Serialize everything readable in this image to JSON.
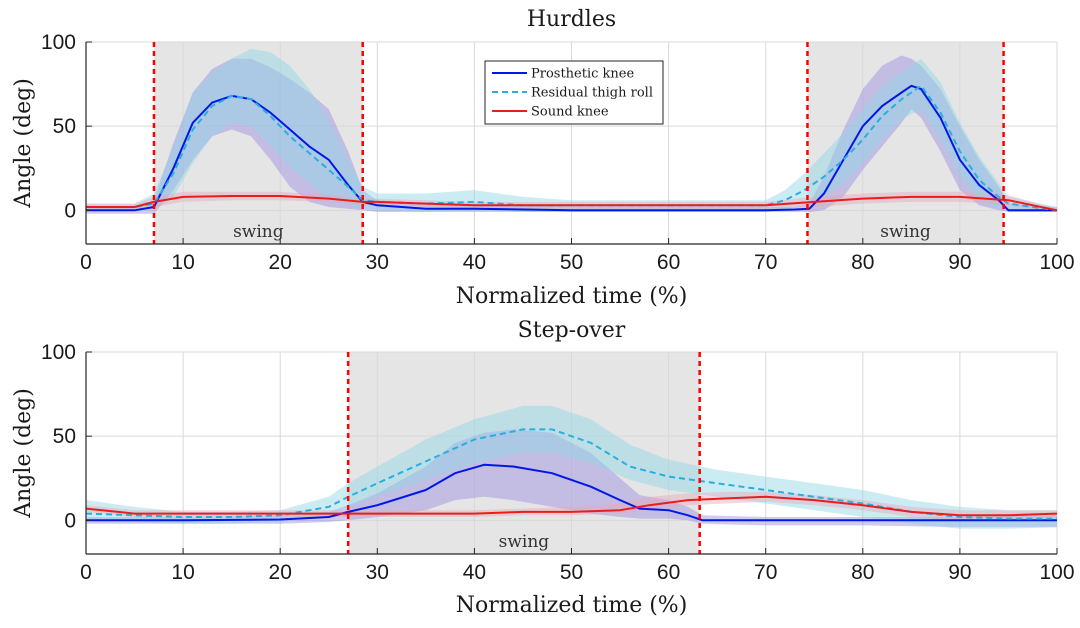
{
  "chart_data": [
    {
      "type": "line",
      "title": "Hurdles",
      "xlabel": "Normalized time (%)",
      "ylabel": "Angle (deg)",
      "xlim": [
        0,
        100
      ],
      "ylim": [
        -20,
        100
      ],
      "xticks": [
        0,
        10,
        20,
        30,
        40,
        50,
        60,
        70,
        80,
        90,
        100
      ],
      "yticks": [
        0,
        50,
        100
      ],
      "grid": true,
      "legend": "top-center",
      "swing_regions": [
        {
          "start": 7,
          "end": 28.5,
          "label": "swing"
        },
        {
          "start": 74.3,
          "end": 94.5,
          "label": "swing"
        }
      ],
      "series": [
        {
          "name": "Prosthetic knee",
          "color": "#0018e6",
          "style": "solid",
          "band_color": "#9a8ce0",
          "x": [
            0,
            5,
            7,
            9,
            11,
            13,
            15,
            17,
            19,
            21,
            23,
            25,
            27,
            28.5,
            30,
            35,
            40,
            50,
            60,
            70,
            73,
            74.5,
            76,
            78,
            80,
            82,
            84,
            85,
            86,
            88,
            90,
            92,
            94,
            95,
            100
          ],
          "values": [
            0,
            0,
            2,
            25,
            52,
            64,
            68,
            66,
            58,
            48,
            38,
            30,
            15,
            5,
            3,
            1,
            1,
            0,
            0,
            0,
            0.5,
            1,
            10,
            30,
            50,
            62,
            70,
            74,
            72,
            55,
            30,
            15,
            6,
            0,
            0
          ],
          "band_low": [
            -2,
            -2,
            -2,
            12,
            30,
            44,
            48,
            44,
            30,
            14,
            5,
            2,
            1,
            0,
            -1,
            -1,
            -1,
            -1,
            -1,
            -1,
            -1,
            -1,
            0,
            8,
            24,
            38,
            52,
            60,
            55,
            35,
            12,
            3,
            0,
            -1,
            -1
          ],
          "band_high": [
            2,
            2,
            6,
            40,
            70,
            84,
            90,
            90,
            85,
            78,
            70,
            60,
            35,
            12,
            6,
            4,
            4,
            2,
            2,
            2,
            2,
            4,
            20,
            48,
            72,
            86,
            92,
            90,
            86,
            72,
            50,
            30,
            14,
            4,
            2
          ]
        },
        {
          "name": "Residual thigh roll",
          "color": "#29aee0",
          "style": "dashed",
          "band_color": "#8fd4e6",
          "x": [
            0,
            5,
            7,
            9,
            11,
            13,
            15,
            17,
            19,
            21,
            23,
            25,
            27,
            28.5,
            30,
            35,
            40,
            45,
            50,
            60,
            70,
            72,
            74,
            76,
            78,
            80,
            82,
            84,
            86,
            88,
            90,
            92,
            94,
            95,
            100
          ],
          "values": [
            2,
            2,
            4,
            22,
            48,
            62,
            68,
            66,
            56,
            44,
            34,
            24,
            14,
            6,
            5,
            4,
            5,
            3,
            3,
            3,
            3,
            6,
            12,
            20,
            30,
            42,
            56,
            66,
            74,
            58,
            35,
            18,
            8,
            4,
            0
          ],
          "band_low": [
            0,
            0,
            0,
            8,
            28,
            44,
            52,
            50,
            38,
            26,
            16,
            8,
            3,
            1,
            0,
            -1,
            0,
            -1,
            -1,
            -1,
            -1,
            0,
            3,
            8,
            16,
            28,
            42,
            54,
            60,
            42,
            20,
            6,
            1,
            0,
            -1
          ],
          "band_high": [
            4,
            4,
            10,
            38,
            70,
            82,
            90,
            96,
            94,
            86,
            72,
            54,
            30,
            14,
            10,
            10,
            12,
            8,
            6,
            6,
            6,
            12,
            22,
            34,
            46,
            60,
            74,
            82,
            90,
            76,
            52,
            32,
            16,
            8,
            2
          ]
        },
        {
          "name": "Sound knee",
          "color": "#e81e1e",
          "style": "solid",
          "band_color": "#e6a8b8",
          "x": [
            0,
            5,
            7,
            10,
            15,
            20,
            25,
            28.5,
            30,
            35,
            40,
            45,
            50,
            60,
            70,
            75,
            80,
            85,
            90,
            95,
            100
          ],
          "values": [
            2,
            2,
            5,
            8,
            8.5,
            8.5,
            7,
            5,
            5,
            4,
            3,
            3,
            3,
            3,
            3,
            5,
            7,
            8,
            8,
            6,
            0
          ],
          "band_low": [
            0,
            0,
            2,
            5,
            6,
            6,
            5,
            3,
            3,
            2,
            1,
            1,
            1,
            1,
            1,
            2,
            4,
            5,
            5,
            3,
            -1
          ],
          "band_high": [
            4,
            4,
            8,
            11,
            11,
            11,
            9,
            7,
            7,
            6,
            5,
            5,
            5,
            5,
            5,
            8,
            10,
            11,
            11,
            9,
            1
          ]
        }
      ]
    },
    {
      "type": "line",
      "title": "Step-over",
      "xlabel": "Normalized time (%)",
      "ylabel": "Angle (deg)",
      "xlim": [
        0,
        100
      ],
      "ylim": [
        -20,
        100
      ],
      "xticks": [
        0,
        10,
        20,
        30,
        40,
        50,
        60,
        70,
        80,
        90,
        100
      ],
      "yticks": [
        0,
        50,
        100
      ],
      "grid": true,
      "legend": "none",
      "swing_regions": [
        {
          "start": 27,
          "end": 63.2,
          "label": "swing"
        }
      ],
      "series": [
        {
          "name": "Prosthetic knee",
          "color": "#0018e6",
          "style": "solid",
          "band_color": "#9a8ce0",
          "x": [
            0,
            10,
            20,
            25,
            27,
            30,
            35,
            38,
            41,
            44,
            48,
            52,
            55,
            57,
            60,
            62,
            63.5,
            70,
            80,
            90,
            100
          ],
          "values": [
            0,
            0,
            0.5,
            2,
            5,
            9,
            18,
            28,
            33,
            32,
            28,
            20,
            12,
            7,
            6,
            3,
            0,
            0,
            0,
            0,
            0
          ],
          "band_low": [
            -2,
            -2,
            -2,
            -1,
            0,
            2,
            6,
            12,
            14,
            12,
            8,
            4,
            2,
            1,
            1,
            0,
            -2,
            -3,
            -3,
            -4,
            -4
          ],
          "band_high": [
            2,
            2,
            3,
            5,
            9,
            16,
            32,
            46,
            52,
            54,
            52,
            40,
            25,
            15,
            12,
            8,
            3,
            2,
            2,
            2,
            3
          ]
        },
        {
          "name": "Residual thigh roll",
          "color": "#29aee0",
          "style": "dashed",
          "band_color": "#8fd4e6",
          "x": [
            0,
            5,
            10,
            15,
            20,
            25,
            27,
            30,
            35,
            40,
            45,
            48,
            52,
            56,
            60,
            65,
            70,
            75,
            80,
            85,
            90,
            95,
            100
          ],
          "values": [
            4,
            3,
            2,
            2,
            3,
            8,
            14,
            22,
            35,
            48,
            54,
            54,
            46,
            32,
            26,
            22,
            18,
            14,
            10,
            5,
            2,
            1,
            1
          ],
          "band_low": [
            0,
            -1,
            -2,
            -2,
            -1,
            3,
            8,
            14,
            24,
            34,
            40,
            40,
            34,
            24,
            18,
            14,
            10,
            6,
            2,
            -2,
            -5,
            -5,
            -4
          ],
          "band_high": [
            12,
            8,
            5,
            5,
            6,
            14,
            22,
            32,
            48,
            60,
            68,
            68,
            60,
            45,
            36,
            30,
            26,
            22,
            18,
            12,
            8,
            6,
            6
          ]
        },
        {
          "name": "Sound knee",
          "color": "#e81e1e",
          "style": "solid",
          "band_color": "#e6a8b8",
          "x": [
            0,
            5,
            10,
            15,
            20,
            25,
            27,
            30,
            35,
            40,
            45,
            50,
            55,
            58,
            62,
            66,
            70,
            75,
            80,
            85,
            90,
            95,
            100
          ],
          "values": [
            7,
            4,
            4,
            4,
            4,
            4,
            4,
            4,
            4,
            4,
            5,
            5,
            6,
            9,
            12,
            13,
            14,
            12,
            9,
            5,
            3,
            3,
            4
          ],
          "band_low": [
            5,
            2,
            2,
            2,
            2,
            2,
            2,
            2,
            2,
            2,
            3,
            3,
            4,
            6,
            9,
            10,
            11,
            9,
            6,
            2,
            0,
            0,
            2
          ],
          "band_high": [
            9,
            6,
            6,
            6,
            6,
            6,
            6,
            6,
            6,
            6,
            7,
            8,
            10,
            14,
            16,
            17,
            17,
            15,
            12,
            8,
            6,
            6,
            6
          ]
        }
      ]
    }
  ]
}
